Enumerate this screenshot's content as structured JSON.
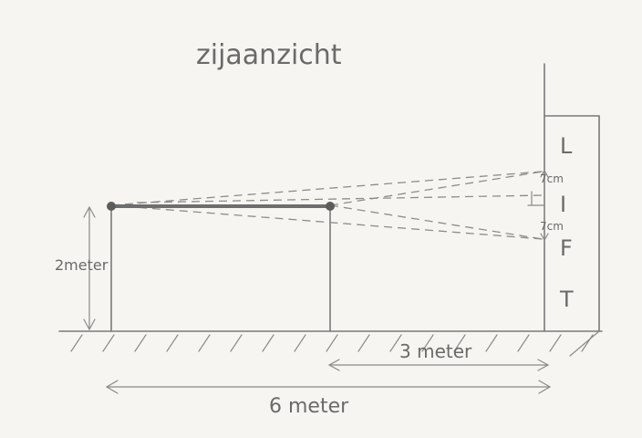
{
  "title": "zijaanzicht",
  "height_label": "2meter",
  "distance_short": "3 meter",
  "distance_long": "6 meter",
  "offset_top": "7cm",
  "offset_bottom": "7cm",
  "letters": [
    "L",
    "I",
    "F",
    "T"
  ]
}
